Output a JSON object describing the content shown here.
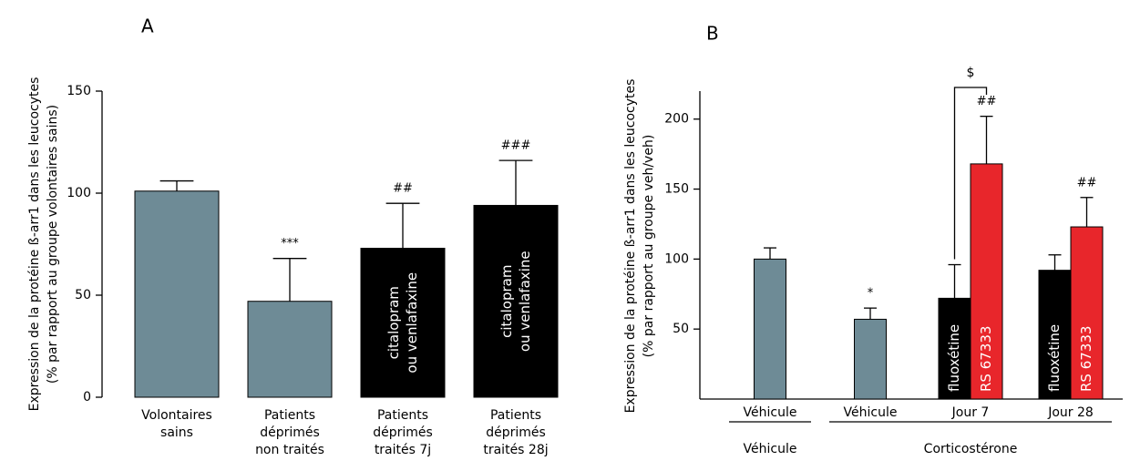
{
  "chart_data": [
    {
      "type": "bar",
      "title": "A",
      "ylabel": [
        "Expression de la protéine ß-arr1 dans les leucocytes",
        "(% par rapport au groupe volontaires sains)"
      ],
      "categories": [
        "Volontaires\nsains",
        "Patients\ndéprimés\nnon traités",
        "Patients\ndéprimés\ntraités 7j",
        "Patients\ndéprimés\ntraités 28j"
      ],
      "values": [
        101,
        47,
        73,
        94
      ],
      "errors": [
        5,
        21,
        22,
        22
      ],
      "colors": [
        "#6e8b96",
        "#6e8b96",
        "#000000",
        "#000000"
      ],
      "annotations": [
        null,
        "***",
        "##",
        "###"
      ],
      "bar_labels": [
        null,
        null,
        "citalopram\nou venlafaxine",
        "citalopram\nou venlafaxine"
      ],
      "ylim": [
        0,
        150
      ],
      "yticks": [
        0,
        50,
        100,
        150
      ],
      "xaxis": false
    },
    {
      "type": "bar",
      "title": "B",
      "ylabel": [
        "Expression de la protéine ß-arr1 dans les leucocytes",
        "(% par rapport au groupe veh/veh)"
      ],
      "groups": [
        {
          "label": "Véhicule",
          "categories": [
            "Véhicule"
          ]
        },
        {
          "label": "Corticostérone",
          "categories": [
            "Véhicule",
            "Jour 7",
            "Jour 28"
          ]
        }
      ],
      "series": [
        {
          "color": "#6e8b96",
          "values": [
            100,
            57,
            null,
            null
          ],
          "errors": [
            8,
            8,
            null,
            null
          ],
          "annotations": [
            null,
            "*",
            null,
            null
          ]
        },
        {
          "name": "fluoxétine",
          "color": "#000000",
          "values": [
            null,
            null,
            72,
            92
          ],
          "errors": [
            null,
            null,
            24,
            11
          ],
          "annotations": [
            null,
            null,
            null,
            null
          ]
        },
        {
          "name": "RS 67333",
          "color": "#e8262b",
          "values": [
            null,
            null,
            168,
            123
          ],
          "errors": [
            null,
            null,
            34,
            21
          ],
          "annotations": [
            null,
            null,
            "##",
            "##"
          ]
        }
      ],
      "bracket_label": "$",
      "ylim": [
        0,
        220
      ],
      "yticks": [
        50,
        100,
        150,
        200
      ],
      "xaxis": true
    }
  ]
}
